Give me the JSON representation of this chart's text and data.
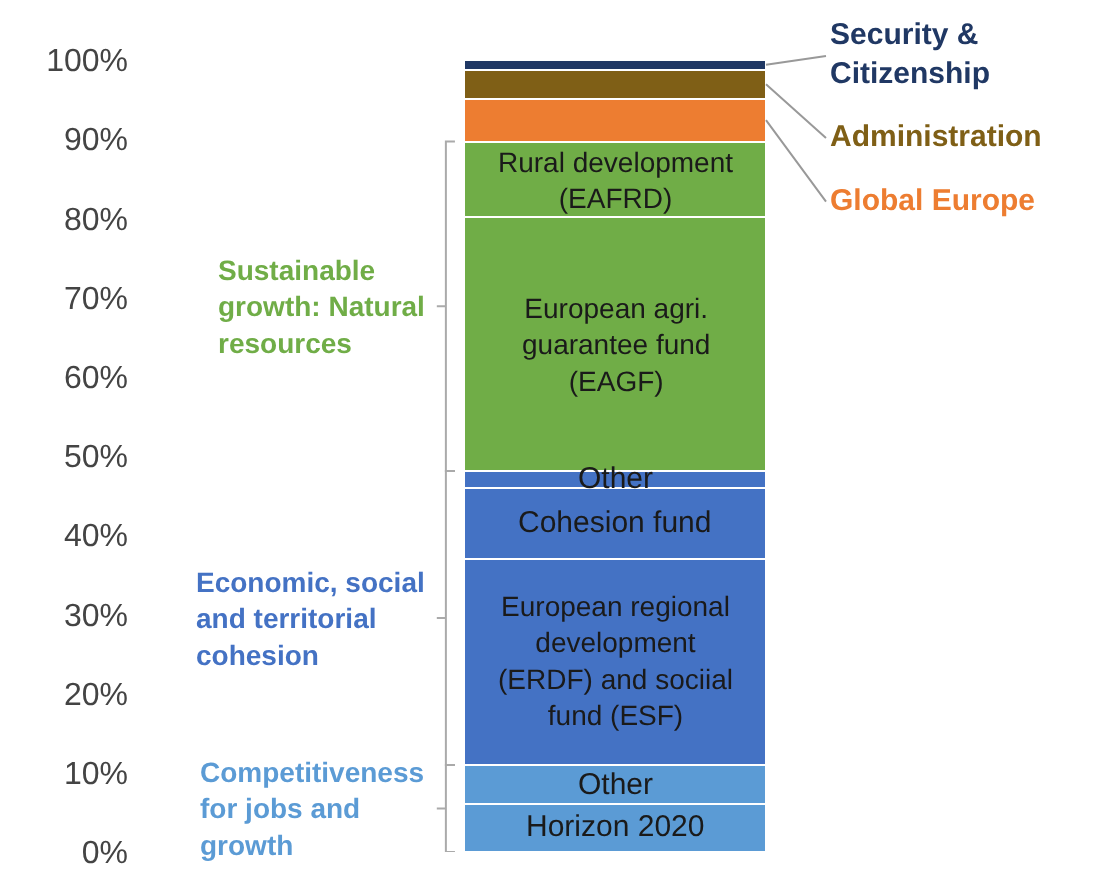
{
  "chart_data": {
    "type": "bar",
    "stacked": true,
    "categories": [
      null
    ],
    "series": [
      {
        "name": "Horizon 2020",
        "color": "#5b9bd5",
        "values": [
          6.1
        ]
      },
      {
        "name": "Other",
        "color": "#5b9bd5",
        "values": [
          4.9
        ]
      },
      {
        "name": "European regional\ndevelopment\n(ERDF) and sociial\nfund (ESF)",
        "color": "#4472c4",
        "values": [
          26.0
        ]
      },
      {
        "name": "Cohesion fund",
        "color": "#4472c4",
        "values": [
          8.9
        ]
      },
      {
        "name": "Other",
        "color": "#4472c4",
        "values": [
          2.2
        ]
      },
      {
        "name": "European agri.\nguarantee fund\n(EAGF)",
        "color": "#70ad47",
        "values": [
          32.1
        ]
      },
      {
        "name": "Rural development\n(EAFRD)",
        "color": "#70ad47",
        "values": [
          9.5
        ]
      },
      {
        "name": "Global Europe",
        "color": "#ed7d31",
        "values": [
          5.4
        ]
      },
      {
        "name": "Administration",
        "color": "#7f5f16",
        "values": [
          3.7
        ]
      },
      {
        "name": "Security &\nCitizenship",
        "color": "#203864",
        "values": [
          1.2
        ]
      }
    ],
    "ylim": [
      0,
      100
    ],
    "yticks": [
      {
        "value": 0,
        "label": "0%"
      },
      {
        "value": 10,
        "label": "10%"
      },
      {
        "value": 20,
        "label": "20%"
      },
      {
        "value": 30,
        "label": "30%"
      },
      {
        "value": 40,
        "label": "40%"
      },
      {
        "value": 50,
        "label": "50%"
      },
      {
        "value": 60,
        "label": "60%"
      },
      {
        "value": 70,
        "label": "70%"
      },
      {
        "value": 80,
        "label": "80%"
      },
      {
        "value": 90,
        "label": "90%"
      },
      {
        "value": 100,
        "label": "100%"
      }
    ],
    "annotations": [
      "Sustainable\ngrowth: Natural\nresources",
      "Economic, social\nand territorial\ncohesion",
      "Competitiveness\nfor jobs and\ngrowth"
    ]
  }
}
